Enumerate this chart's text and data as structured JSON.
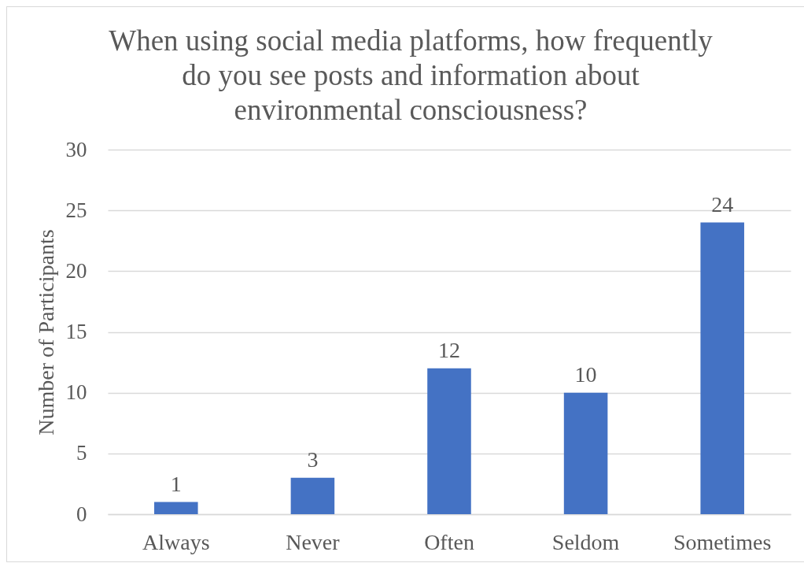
{
  "chart_data": {
    "type": "bar",
    "title": "When using social media platforms, how frequently do you see posts and information about environmental consciousness?",
    "ylabel": "Number of Participants",
    "categories": [
      "Always",
      "Never",
      "Often",
      "Seldom",
      "Sometimes"
    ],
    "values": [
      1,
      3,
      12,
      10,
      24
    ],
    "color": "#4472c4",
    "ylim": [
      0,
      30
    ],
    "yticks": [
      0,
      5,
      10,
      15,
      20,
      25,
      30
    ],
    "grid": "y",
    "data_labels": true
  }
}
